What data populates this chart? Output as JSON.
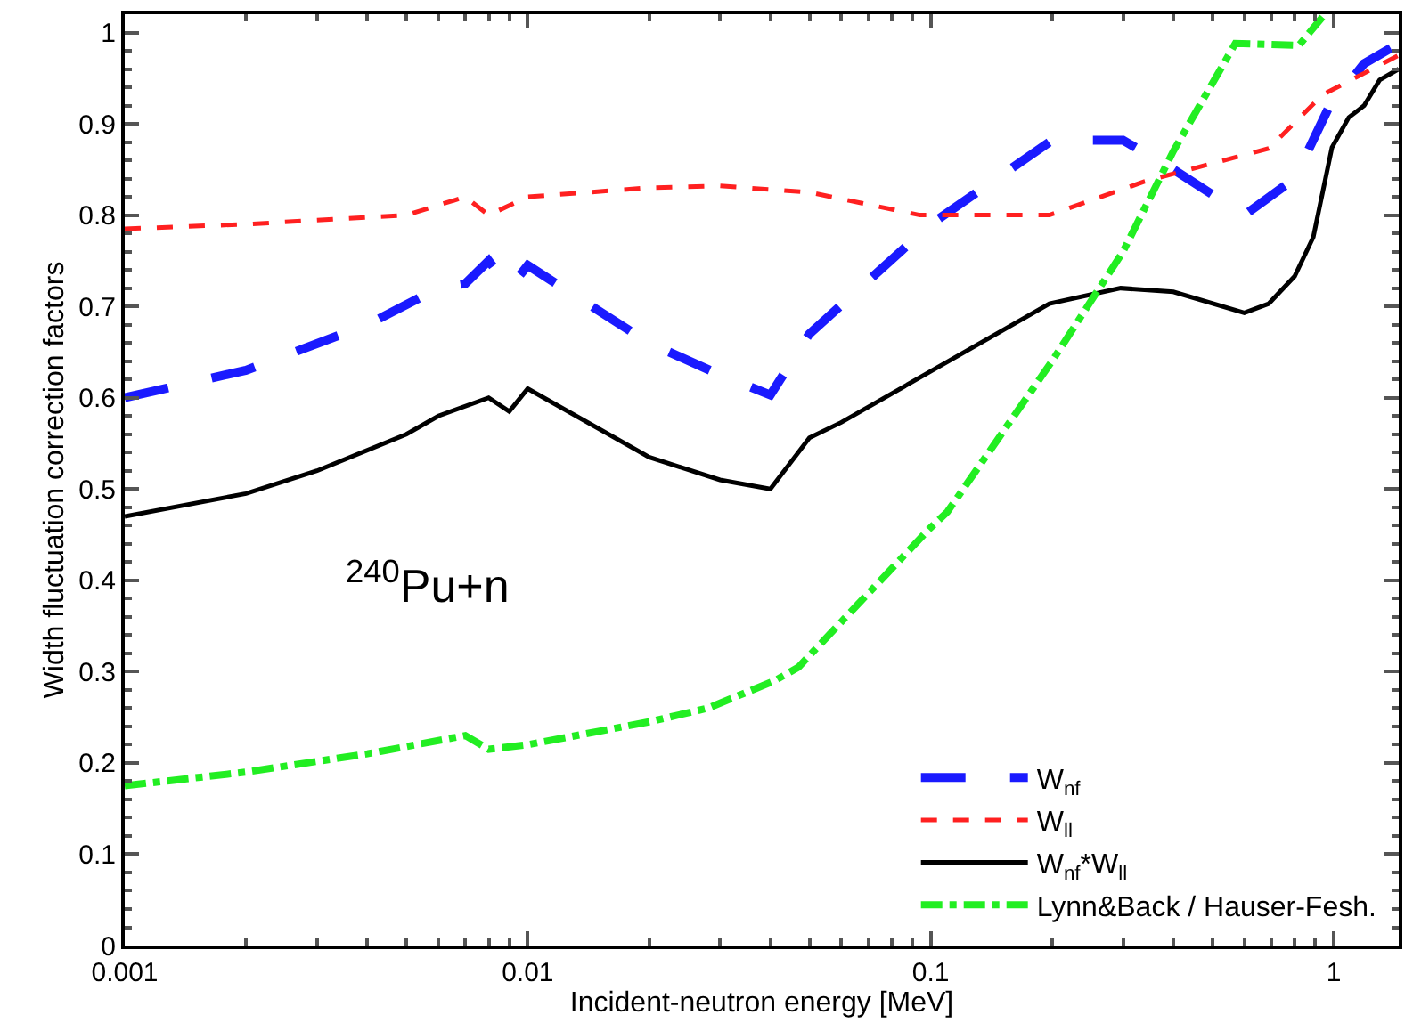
{
  "chart_data": {
    "type": "line",
    "xlabel": "Incident-neutron energy [MeV]",
    "ylabel": "Width fluctuation correction factors",
    "log": "x",
    "xlim": [
      0.001,
      1.45
    ],
    "xticks": [
      0.001,
      0.01,
      0.1,
      1
    ],
    "ylim": [
      0,
      1.02
    ],
    "yticks": [
      0,
      0.1,
      0.2,
      0.3,
      0.4,
      0.5,
      0.6,
      0.7,
      0.8,
      0.9,
      1
    ],
    "legend": "bottom right",
    "annotations": [
      "$^{240}$Pu+n"
    ],
    "series": [
      {
        "name": "W$_{nf}$",
        "color": "#1a1aff",
        "line_style": "longdash",
        "x": [
          0.001,
          0.002,
          0.004,
          0.006,
          0.007,
          0.008,
          0.009,
          0.01,
          0.02,
          0.03,
          0.04,
          0.05,
          0.1,
          0.2,
          0.3,
          0.4,
          0.6,
          0.8,
          0.97,
          1.19,
          1.45
        ],
        "values": [
          0.6,
          0.63,
          0.68,
          0.72,
          0.725,
          0.75,
          0.72,
          0.745,
          0.66,
          0.625,
          0.603,
          0.67,
          0.79,
          0.882,
          0.882,
          0.85,
          0.8,
          0.84,
          0.917,
          0.966,
          0.988
        ]
      },
      {
        "name": "W$_{ll}$",
        "color": "#ff2020",
        "line_style": "dashed",
        "x": [
          0.001,
          0.002,
          0.005,
          0.007,
          0.008,
          0.01,
          0.02,
          0.03,
          0.05,
          0.094,
          0.197,
          0.34,
          0.69,
          0.94,
          1.45
        ],
        "values": [
          0.785,
          0.79,
          0.8,
          0.82,
          0.8,
          0.82,
          0.83,
          0.832,
          0.825,
          0.8,
          0.8,
          0.837,
          0.873,
          0.932,
          0.975
        ]
      },
      {
        "name": "W$_{nf}$*W$_{ll}$",
        "color": "#000000",
        "line_style": "solid",
        "x": [
          0.001,
          0.002,
          0.003,
          0.005,
          0.006,
          0.008,
          0.009,
          0.01,
          0.02,
          0.03,
          0.04,
          0.05,
          0.06,
          0.197,
          0.296,
          0.4,
          0.6,
          0.69,
          0.8,
          0.89,
          0.99,
          1.09,
          1.19,
          1.3,
          1.45
        ],
        "values": [
          0.47,
          0.495,
          0.52,
          0.56,
          0.58,
          0.6,
          0.585,
          0.61,
          0.535,
          0.51,
          0.5,
          0.556,
          0.573,
          0.703,
          0.72,
          0.716,
          0.693,
          0.703,
          0.733,
          0.776,
          0.874,
          0.907,
          0.92,
          0.948,
          0.96
        ]
      },
      {
        "name": "Lynn&Back / Hauser-Fesh.",
        "color": "#22ee22",
        "line_style": "dashdot",
        "x": [
          0.001,
          0.002,
          0.004,
          0.007,
          0.008,
          0.01,
          0.02,
          0.028,
          0.041,
          0.047,
          0.099,
          0.11,
          0.2,
          0.24,
          0.3,
          0.4,
          0.57,
          0.82,
          0.95
        ],
        "values": [
          0.175,
          0.19,
          0.21,
          0.23,
          0.215,
          0.22,
          0.245,
          0.26,
          0.29,
          0.305,
          0.456,
          0.475,
          0.64,
          0.694,
          0.76,
          0.87,
          0.988,
          0.986,
          1.02
        ]
      }
    ]
  }
}
